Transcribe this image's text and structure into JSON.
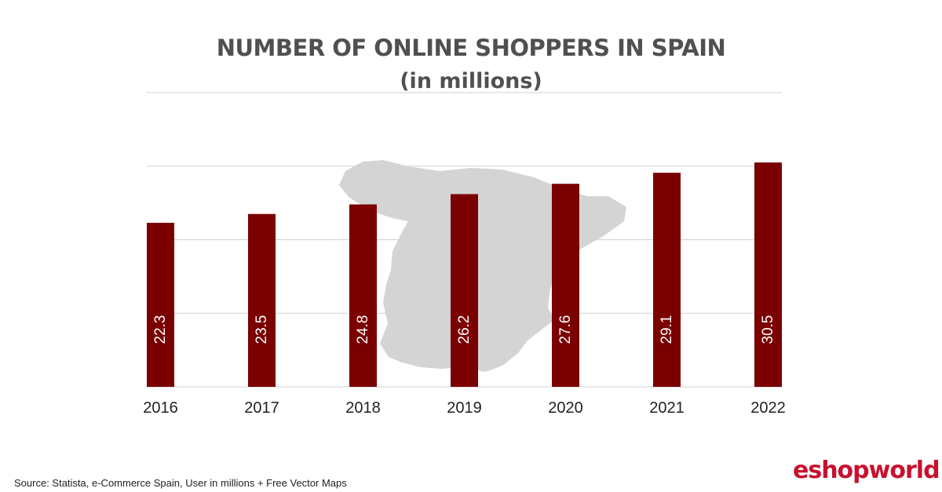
{
  "title": "NUMBER OF ONLINE SHOPPERS IN SPAIN",
  "subtitle": "(in millions)",
  "source": "Source: Statista, e-Commerce Spain, User in millions + Free Vector Maps",
  "logo": {
    "text_before": "eshopw",
    "text_o": "o",
    "text_after": "rld"
  },
  "colors": {
    "bar": "#7b0000",
    "grid": "#d0d0d0",
    "map": "#d4d4d4",
    "brand": "#c8102e"
  },
  "chart_data": {
    "type": "bar",
    "categories": [
      "2016",
      "2017",
      "2018",
      "2019",
      "2020",
      "2021",
      "2022"
    ],
    "values": [
      22.3,
      23.5,
      24.8,
      26.2,
      27.6,
      29.1,
      30.5
    ],
    "ylim": [
      0,
      40
    ],
    "grid": true,
    "data_labels": "vertical-inside-bar"
  }
}
